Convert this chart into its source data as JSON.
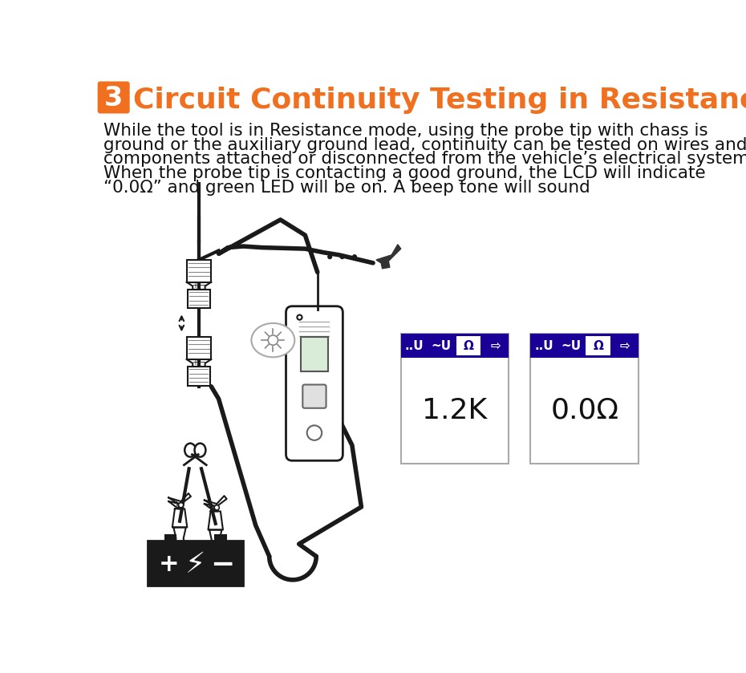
{
  "title_number": "3",
  "title_number_bg": "#F07020",
  "title_text": "Circuit Continuity Testing in Resistance mode",
  "title_color": "#F07020",
  "title_fontsize": 26,
  "body_line1": "While the tool is in Resistance mode, using the probe tip with chass is",
  "body_line2": "ground or the auxiliary ground lead, continuity can be tested on wires and",
  "body_line3": "components attached or disconnected from the vehicle’s electrical system.",
  "body_line4": "When the probe tip is contacting a good ground, the LCD will indicate",
  "body_line5": "“0.0Ω” and green LED will be on. A beep tone will sound",
  "body_fontsize": 15.5,
  "bg_color": "#ffffff",
  "display_blue": "#1a0096",
  "display1_value": "1.2K",
  "display2_value": "0.0Ω",
  "display_value_fontsize": 26,
  "tab_labels": [
    "..U",
    "~U",
    "Ω",
    "⇨"
  ],
  "tab_active_index": 2,
  "line_color": "#1a1a1a",
  "line_width": 3.0
}
